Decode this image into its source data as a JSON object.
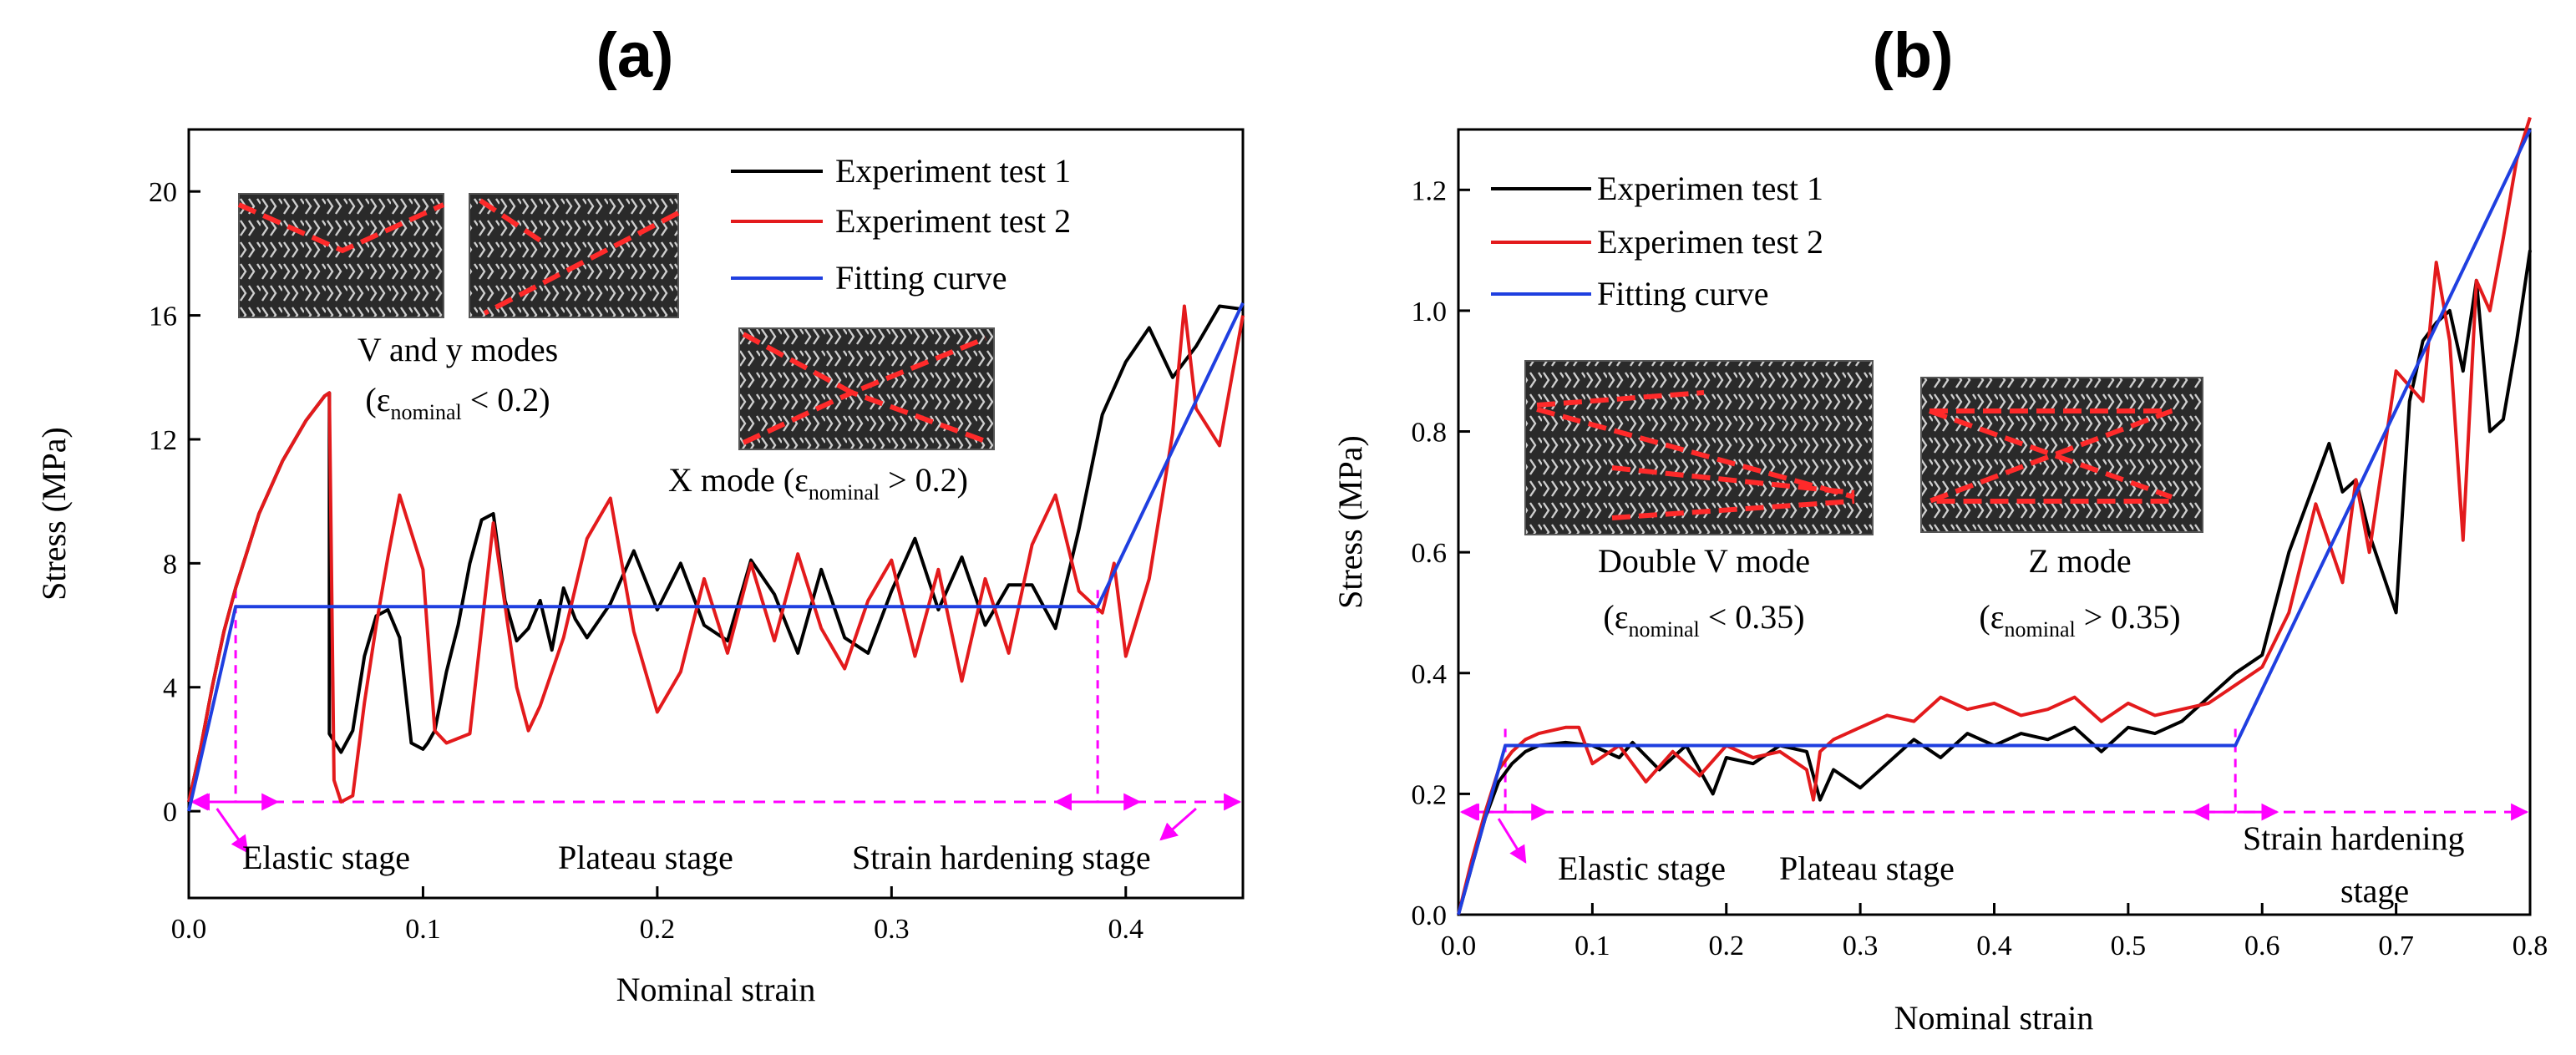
{
  "chart_data": [
    {
      "panel": "(a)",
      "type": "line",
      "xlabel": "Nominal strain",
      "ylabel": "Stress (MPa)",
      "xlim": [
        0,
        0.45
      ],
      "ylim": [
        -2.8,
        22
      ],
      "xticks": [
        0.0,
        0.1,
        0.2,
        0.3,
        0.4
      ],
      "xtick_labels": [
        "0.0",
        "0.1",
        "0.2",
        "0.3",
        "0.4"
      ],
      "yticks": [
        0,
        4,
        8,
        12,
        16,
        20
      ],
      "ytick_labels": [
        "0",
        "4",
        "8",
        "12",
        "16",
        "20"
      ],
      "legend": [
        "Experiment test 1",
        "Experiment test 2",
        "Fitting curve"
      ],
      "series": [
        {
          "name": "Experiment test 1",
          "color": "#000000",
          "x": [
            0,
            0.005,
            0.01,
            0.015,
            0.02,
            0.03,
            0.04,
            0.05,
            0.058,
            0.06,
            0.06,
            0.065,
            0.07,
            0.075,
            0.08,
            0.085,
            0.09,
            0.095,
            0.1,
            0.102,
            0.105,
            0.11,
            0.115,
            0.12,
            0.125,
            0.13,
            0.135,
            0.14,
            0.145,
            0.15,
            0.155,
            0.16,
            0.165,
            0.17,
            0.18,
            0.19,
            0.2,
            0.21,
            0.22,
            0.23,
            0.24,
            0.25,
            0.26,
            0.27,
            0.28,
            0.29,
            0.3,
            0.31,
            0.32,
            0.33,
            0.34,
            0.35,
            0.36,
            0.37,
            0.38,
            0.39,
            0.4,
            0.41,
            0.42,
            0.43,
            0.44,
            0.45
          ],
          "y": [
            0.3,
            2,
            4,
            5.8,
            7.2,
            9.6,
            11.3,
            12.6,
            13.4,
            13.5,
            2.5,
            1.9,
            2.6,
            5.0,
            6.3,
            6.5,
            5.6,
            2.2,
            2.0,
            2.2,
            2.6,
            4.5,
            6.0,
            8.0,
            9.4,
            9.6,
            6.8,
            5.5,
            5.9,
            6.8,
            5.2,
            7.2,
            6.2,
            5.6,
            6.7,
            8.4,
            6.5,
            8.0,
            6.0,
            5.5,
            8.1,
            7.0,
            5.1,
            7.8,
            5.6,
            5.1,
            7.1,
            8.8,
            6.5,
            8.2,
            6.0,
            7.3,
            7.3,
            5.9,
            9.1,
            12.8,
            14.5,
            15.6,
            14.0,
            15.0,
            16.3,
            16.2
          ]
        },
        {
          "name": "Experiment test 2",
          "color": "#e31a1c",
          "x": [
            0,
            0.005,
            0.01,
            0.015,
            0.02,
            0.03,
            0.04,
            0.05,
            0.058,
            0.06,
            0.062,
            0.065,
            0.07,
            0.075,
            0.08,
            0.085,
            0.09,
            0.095,
            0.1,
            0.105,
            0.11,
            0.12,
            0.13,
            0.14,
            0.145,
            0.15,
            0.16,
            0.17,
            0.18,
            0.19,
            0.2,
            0.21,
            0.22,
            0.23,
            0.24,
            0.25,
            0.26,
            0.27,
            0.28,
            0.29,
            0.3,
            0.31,
            0.32,
            0.33,
            0.34,
            0.35,
            0.36,
            0.37,
            0.38,
            0.39,
            0.395,
            0.4,
            0.41,
            0.42,
            0.425,
            0.43,
            0.44,
            0.45
          ],
          "y": [
            0.3,
            2,
            4,
            5.8,
            7.2,
            9.6,
            11.3,
            12.6,
            13.4,
            13.5,
            1.0,
            0.3,
            0.5,
            3.5,
            6.0,
            8.2,
            10.2,
            9.0,
            7.8,
            2.6,
            2.2,
            2.5,
            9.3,
            4.0,
            2.6,
            3.4,
            5.6,
            8.8,
            10.1,
            5.8,
            3.2,
            4.5,
            7.5,
            5.1,
            8.0,
            5.5,
            8.3,
            5.9,
            4.6,
            6.8,
            8.1,
            5.0,
            7.8,
            4.2,
            7.5,
            5.1,
            8.6,
            10.2,
            7.1,
            6.4,
            8.0,
            5.0,
            7.5,
            12.2,
            16.3,
            13.0,
            11.8,
            16.0
          ]
        },
        {
          "name": "Fitting curve",
          "color": "#1f3fe0",
          "x": [
            0,
            0.02,
            0.388,
            0.45
          ],
          "y": [
            0,
            6.6,
            6.6,
            16.4
          ]
        }
      ],
      "annotations": {
        "elastic": "Elastic stage",
        "plateau": "Plateau stage",
        "hardening": "Strain hardening stage",
        "v_modes": "V and y modes",
        "v_modes_cond_pre": "(ε",
        "v_modes_cond_sub": "nominal",
        "v_modes_cond_post": " < 0.2)",
        "x_mode": "X mode  (ε",
        "x_mode_sub": "nominal",
        "x_mode_post": " > 0.2)"
      },
      "stage_boundaries": [
        0.02,
        0.388
      ]
    },
    {
      "panel": "(b)",
      "type": "line",
      "xlabel": "Nominal strain",
      "ylabel": "Stress (MPa)",
      "xlim": [
        0,
        0.8
      ],
      "ylim": [
        0,
        1.3
      ],
      "xticks": [
        0.0,
        0.1,
        0.2,
        0.3,
        0.4,
        0.5,
        0.6,
        0.7,
        0.8
      ],
      "xtick_labels": [
        "0.0",
        "0.1",
        "0.2",
        "0.3",
        "0.4",
        "0.5",
        "0.6",
        "0.7",
        "0.8"
      ],
      "yticks": [
        0.0,
        0.2,
        0.4,
        0.6,
        0.8,
        1.0,
        1.2
      ],
      "ytick_labels": [
        "0.0",
        "0.2",
        "0.4",
        "0.6",
        "0.8",
        "1.0",
        "1.2"
      ],
      "legend": [
        "Experimen test 1",
        "Experimen test 2",
        "Fitting curve"
      ],
      "series": [
        {
          "name": "Experimen test 1",
          "color": "#000000",
          "x": [
            0,
            0.01,
            0.02,
            0.03,
            0.04,
            0.05,
            0.06,
            0.08,
            0.1,
            0.12,
            0.13,
            0.15,
            0.17,
            0.19,
            0.2,
            0.22,
            0.24,
            0.26,
            0.27,
            0.28,
            0.3,
            0.32,
            0.34,
            0.36,
            0.38,
            0.4,
            0.42,
            0.44,
            0.46,
            0.48,
            0.5,
            0.52,
            0.54,
            0.56,
            0.58,
            0.6,
            0.62,
            0.64,
            0.65,
            0.66,
            0.67,
            0.68,
            0.7,
            0.71,
            0.72,
            0.73,
            0.74,
            0.75,
            0.76,
            0.77,
            0.78,
            0.79,
            0.8
          ],
          "y": [
            0,
            0.08,
            0.16,
            0.22,
            0.25,
            0.27,
            0.28,
            0.285,
            0.28,
            0.26,
            0.285,
            0.24,
            0.28,
            0.2,
            0.26,
            0.25,
            0.28,
            0.27,
            0.19,
            0.24,
            0.21,
            0.25,
            0.29,
            0.26,
            0.3,
            0.28,
            0.3,
            0.29,
            0.31,
            0.27,
            0.31,
            0.3,
            0.32,
            0.36,
            0.4,
            0.43,
            0.6,
            0.72,
            0.78,
            0.7,
            0.72,
            0.63,
            0.5,
            0.85,
            0.95,
            0.98,
            1.0,
            0.9,
            1.05,
            0.8,
            0.82,
            0.95,
            1.1
          ]
        },
        {
          "name": "Experimen test 2",
          "color": "#e31a1c",
          "x": [
            0,
            0.01,
            0.02,
            0.03,
            0.04,
            0.05,
            0.06,
            0.08,
            0.09,
            0.1,
            0.12,
            0.14,
            0.16,
            0.18,
            0.2,
            0.22,
            0.24,
            0.26,
            0.265,
            0.27,
            0.28,
            0.3,
            0.32,
            0.34,
            0.36,
            0.38,
            0.4,
            0.42,
            0.44,
            0.46,
            0.48,
            0.5,
            0.52,
            0.54,
            0.56,
            0.58,
            0.6,
            0.62,
            0.64,
            0.66,
            0.67,
            0.68,
            0.7,
            0.72,
            0.73,
            0.74,
            0.75,
            0.76,
            0.77,
            0.78,
            0.79,
            0.8
          ],
          "y": [
            0,
            0.09,
            0.17,
            0.24,
            0.27,
            0.29,
            0.3,
            0.31,
            0.31,
            0.25,
            0.28,
            0.22,
            0.27,
            0.23,
            0.28,
            0.26,
            0.27,
            0.24,
            0.19,
            0.27,
            0.29,
            0.31,
            0.33,
            0.32,
            0.36,
            0.34,
            0.35,
            0.33,
            0.34,
            0.36,
            0.32,
            0.35,
            0.33,
            0.34,
            0.35,
            0.38,
            0.41,
            0.5,
            0.68,
            0.55,
            0.72,
            0.6,
            0.9,
            0.85,
            1.08,
            0.95,
            0.62,
            1.05,
            1.0,
            1.12,
            1.25,
            1.32
          ]
        },
        {
          "name": "Fitting curve",
          "color": "#1f3fe0",
          "x": [
            0,
            0.035,
            0.58,
            0.8
          ],
          "y": [
            0,
            0.28,
            0.28,
            1.3
          ]
        }
      ],
      "annotations": {
        "elastic": "Elastic stage",
        "plateau": "Plateau stage",
        "hardening_l1": "Strain hardening",
        "hardening_l2": "stage",
        "double_v": "Double V mode",
        "double_v_cond_pre": "(ε",
        "double_v_cond_sub": "nominal",
        "double_v_cond_post": " < 0.35)",
        "z_mode": "Z mode",
        "z_mode_cond_pre": "(ε",
        "z_mode_cond_sub": "nominal",
        "z_mode_cond_post": " > 0.35)"
      },
      "stage_boundaries": [
        0.035,
        0.58
      ]
    }
  ]
}
